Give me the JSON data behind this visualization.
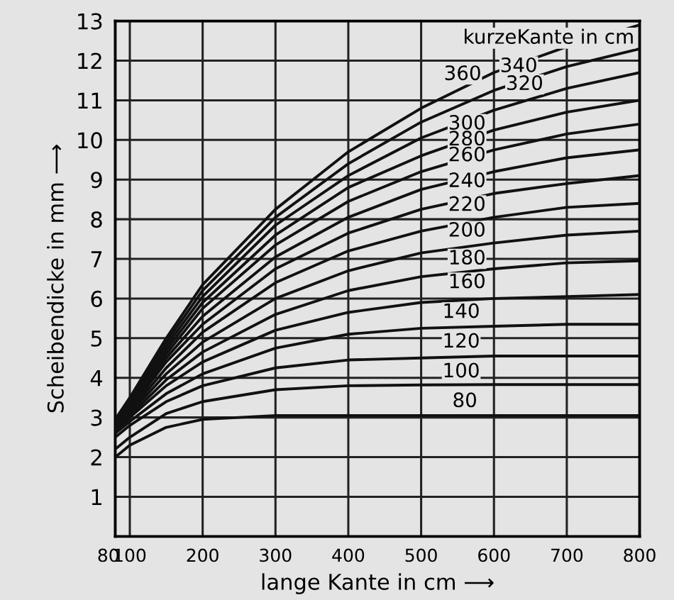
{
  "chart_data": {
    "type": "line",
    "xlabel": "lange Kante in cm ⟶",
    "ylabel": "Scheibendicke in mm ⟶",
    "x": [
      80,
      100,
      150,
      200,
      300,
      400,
      500,
      600,
      700,
      800
    ],
    "xlim": [
      80,
      800
    ],
    "xticks": [
      80,
      100,
      200,
      300,
      400,
      500,
      600,
      700,
      800
    ],
    "ylim": [
      0,
      13
    ],
    "yticks": [
      1,
      2,
      3,
      4,
      5,
      6,
      7,
      8,
      9,
      10,
      11,
      12,
      13
    ],
    "grid": true,
    "legend": false,
    "marker": "none",
    "line_style": "solid",
    "series": [
      {
        "color": "#111111",
        "values": [
          2.0,
          2.3,
          2.75,
          2.95,
          3.05,
          3.05,
          3.05,
          3.05,
          3.05,
          3.05
        ]
      },
      {
        "color": "#111111",
        "values": [
          2.2,
          2.5,
          3.1,
          3.4,
          3.7,
          3.8,
          3.82,
          3.83,
          3.83,
          3.83
        ]
      },
      {
        "color": "#111111",
        "values": [
          2.5,
          2.8,
          3.4,
          3.8,
          4.25,
          4.45,
          4.5,
          4.55,
          4.55,
          4.55
        ]
      },
      {
        "color": "#111111",
        "values": [
          2.6,
          2.9,
          3.6,
          4.1,
          4.75,
          5.1,
          5.25,
          5.3,
          5.35,
          5.35
        ]
      },
      {
        "color": "#111111",
        "values": [
          2.6,
          3.0,
          3.8,
          4.4,
          5.2,
          5.65,
          5.9,
          6.0,
          6.05,
          6.1
        ]
      },
      {
        "color": "#111111",
        "values": [
          2.7,
          3.05,
          3.95,
          4.65,
          5.6,
          6.2,
          6.55,
          6.75,
          6.9,
          6.95
        ]
      },
      {
        "color": "#111111",
        "values": [
          2.7,
          3.1,
          4.1,
          4.9,
          6.0,
          6.7,
          7.15,
          7.4,
          7.6,
          7.7
        ]
      },
      {
        "color": "#111111",
        "values": [
          2.75,
          3.15,
          4.25,
          5.15,
          6.4,
          7.2,
          7.7,
          8.05,
          8.3,
          8.4
        ]
      },
      {
        "color": "#111111",
        "values": [
          2.8,
          3.2,
          4.4,
          5.35,
          6.75,
          7.65,
          8.25,
          8.65,
          8.9,
          9.1
        ]
      },
      {
        "color": "#111111",
        "values": [
          2.8,
          3.25,
          4.5,
          5.55,
          7.05,
          8.05,
          8.75,
          9.2,
          9.55,
          9.75
        ]
      },
      {
        "color": "#111111",
        "values": [
          2.85,
          3.3,
          4.6,
          5.75,
          7.35,
          8.45,
          9.2,
          9.75,
          10.15,
          10.4
        ]
      },
      {
        "color": "#111111",
        "values": [
          2.85,
          3.35,
          4.7,
          5.9,
          7.6,
          8.8,
          9.6,
          10.25,
          10.7,
          11.0
        ]
      },
      {
        "color": "#111111",
        "values": [
          2.9,
          3.4,
          4.8,
          6.05,
          7.85,
          9.1,
          10.05,
          10.75,
          11.3,
          11.7
        ]
      },
      {
        "color": "#111111",
        "values": [
          2.9,
          3.45,
          4.9,
          6.2,
          8.05,
          9.4,
          10.45,
          11.25,
          11.85,
          12.3
        ]
      },
      {
        "color": "#111111",
        "values": [
          2.95,
          3.5,
          5.0,
          6.35,
          8.25,
          9.7,
          10.8,
          11.7,
          12.35,
          12.9
        ]
      }
    ],
    "annotations": [
      "kurzeKante in cm",
      {
        "text": "360",
        "x": 557,
        "y": 11.65
      },
      {
        "text": "340",
        "x": 634,
        "y": 11.85
      },
      {
        "text": "320",
        "x": 642,
        "y": 11.4
      },
      {
        "text": "300",
        "x": 563,
        "y": 10.4
      },
      {
        "text": "280",
        "x": 563,
        "y": 10.0
      },
      {
        "text": "260",
        "x": 563,
        "y": 9.6
      },
      {
        "text": "240",
        "x": 563,
        "y": 8.95
      },
      {
        "text": "220",
        "x": 563,
        "y": 8.35
      },
      {
        "text": "200",
        "x": 563,
        "y": 7.7
      },
      {
        "text": "180",
        "x": 563,
        "y": 7.0
      },
      {
        "text": "160",
        "x": 563,
        "y": 6.4
      },
      {
        "text": "140",
        "x": 555,
        "y": 5.65
      },
      {
        "text": "120",
        "x": 555,
        "y": 4.9
      },
      {
        "text": "100",
        "x": 555,
        "y": 4.15
      },
      {
        "text": "80",
        "x": 560,
        "y": 3.4
      }
    ]
  }
}
